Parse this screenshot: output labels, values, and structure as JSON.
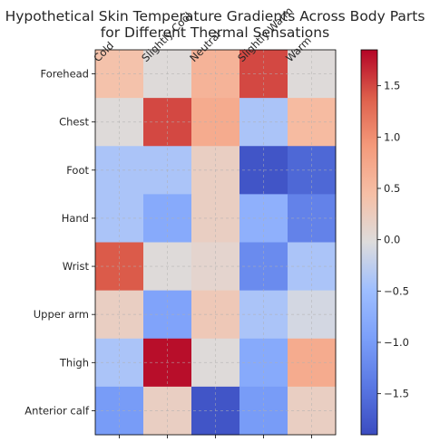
{
  "chart_data": {
    "type": "heatmap",
    "title": "Hypothetical Skin Temperature Gradients Across Body Parts\nfor Different Thermal Sensations",
    "x_categories": [
      "Cold",
      "Slightly Cool",
      "Neutral",
      "Slightly Warm",
      "Warm"
    ],
    "y_categories": [
      "Forehead",
      "Chest",
      "Foot",
      "Hand",
      "Wrist",
      "Upper arm",
      "Thigh",
      "Anterior calf"
    ],
    "values": [
      [
        0.4,
        0.0,
        0.6,
        1.5,
        0.0
      ],
      [
        0.0,
        1.5,
        0.7,
        -0.4,
        0.5
      ],
      [
        -0.4,
        -0.4,
        0.2,
        -1.8,
        -1.6
      ],
      [
        -0.4,
        -0.8,
        0.2,
        -0.7,
        -1.3
      ],
      [
        1.4,
        0.0,
        0.1,
        -1.2,
        -0.4
      ],
      [
        0.2,
        -0.9,
        0.3,
        -0.4,
        -0.1
      ],
      [
        -0.4,
        1.8,
        0.0,
        -0.8,
        0.7
      ],
      [
        -1.0,
        0.2,
        -1.8,
        -1.0,
        0.2
      ]
    ],
    "colorbar": {
      "cmap": "coolwarm",
      "vmin": -1.9,
      "vmax": 1.85,
      "ticks": [
        1.5,
        1.0,
        0.5,
        0.0,
        -0.5,
        -1.0,
        -1.5
      ],
      "tick_labels": [
        "1.5",
        "1.0",
        "0.5",
        "0.0",
        "−0.5",
        "−1.0",
        "−1.5"
      ]
    },
    "grid": true
  }
}
